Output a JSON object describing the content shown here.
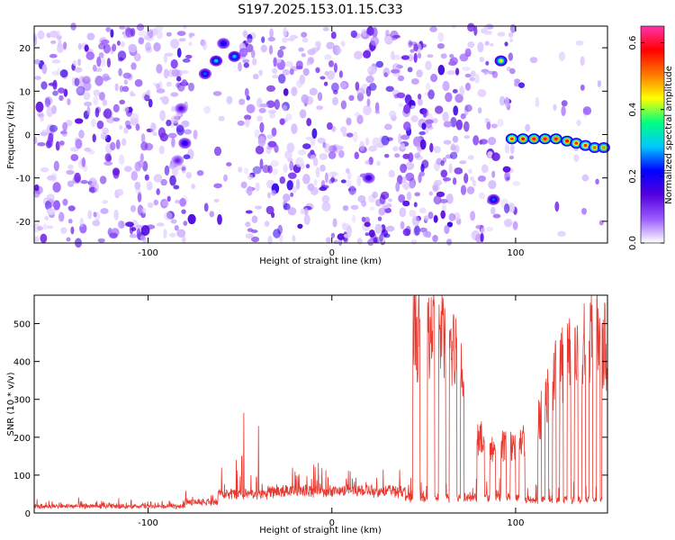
{
  "chart_data": [
    {
      "type": "heatmap",
      "title": "S197.2025.153.01.15.C33",
      "xlabel": "Height of straight line (km)",
      "ylabel": "Frequency (Hz)",
      "xlim": [
        -162,
        150
      ],
      "ylim": [
        -25,
        25
      ],
      "x_ticks": [
        -100,
        0,
        100
      ],
      "y_ticks": [
        -20,
        -10,
        0,
        10,
        20
      ],
      "colorbar": {
        "label": "Normalized spectral amplitude",
        "range": [
          0,
          0.65
        ],
        "ticks": [
          0,
          0.2,
          0.4,
          0.6
        ],
        "colors": [
          "#ffffff",
          "#9a5cff",
          "#5500dd",
          "#0000ff",
          "#00c8ff",
          "#00ff80",
          "#ffff00",
          "#ff7700",
          "#ff0000",
          "#ff33aa"
        ]
      },
      "blank_bands": [
        {
          "x0": -76,
          "x1": -50
        },
        {
          "x0": 89,
          "x1": 95
        },
        {
          "x0": 100,
          "x1": 150
        }
      ],
      "hotspots": [
        {
          "x": -69,
          "y": 14,
          "v": 0.25
        },
        {
          "x": -63,
          "y": 17,
          "v": 0.3
        },
        {
          "x": -59,
          "y": 21,
          "v": 0.22
        },
        {
          "x": -53,
          "y": 18,
          "v": 0.3
        },
        {
          "x": -82,
          "y": 6,
          "v": 0.15
        },
        {
          "x": -80,
          "y": -2,
          "v": 0.2
        },
        {
          "x": -84,
          "y": -6,
          "v": 0.12
        },
        {
          "x": 20,
          "y": -10,
          "v": 0.18
        },
        {
          "x": 92,
          "y": 17,
          "v": 0.45
        },
        {
          "x": 88,
          "y": -15,
          "v": 0.25
        },
        {
          "x": 98,
          "y": -1,
          "v": 0.55
        },
        {
          "x": 104,
          "y": -1,
          "v": 0.58
        },
        {
          "x": 110,
          "y": -1,
          "v": 0.6
        },
        {
          "x": 116,
          "y": -1,
          "v": 0.6
        },
        {
          "x": 122,
          "y": -1,
          "v": 0.6
        },
        {
          "x": 128,
          "y": -1.5,
          "v": 0.58
        },
        {
          "x": 133,
          "y": -2,
          "v": 0.55
        },
        {
          "x": 138,
          "y": -2.5,
          "v": 0.55
        },
        {
          "x": 143,
          "y": -3,
          "v": 0.52
        },
        {
          "x": 148,
          "y": -3,
          "v": 0.5
        }
      ]
    },
    {
      "type": "line",
      "xlabel": "Height of straight line (km)",
      "ylabel": "SNR (10 * v/v)",
      "xlim": [
        -162,
        150
      ],
      "ylim": [
        0,
        575
      ],
      "x_ticks": [
        -100,
        0,
        100
      ],
      "y_ticks": [
        0,
        100,
        200,
        300,
        400,
        500
      ],
      "color": "#e8382f",
      "segments": [
        {
          "x0": -162,
          "x1": -80,
          "base": 15
        },
        {
          "x0": -80,
          "x1": -62,
          "base": 28
        },
        {
          "x0": -62,
          "x1": -35,
          "base": 50
        },
        {
          "x0": -35,
          "x1": 40,
          "base": 60
        },
        {
          "x0": 40,
          "x1": 44,
          "base": 40
        },
        {
          "x0": 44,
          "x1": 48,
          "base": 520
        },
        {
          "x0": 48,
          "x1": 52,
          "base": 40
        },
        {
          "x0": 52,
          "x1": 56,
          "base": 520
        },
        {
          "x0": 56,
          "x1": 58,
          "base": 40
        },
        {
          "x0": 58,
          "x1": 62,
          "base": 510
        },
        {
          "x0": 62,
          "x1": 64,
          "base": 40
        },
        {
          "x0": 64,
          "x1": 68,
          "base": 470
        },
        {
          "x0": 68,
          "x1": 70,
          "base": 40
        },
        {
          "x0": 70,
          "x1": 72,
          "base": 420
        },
        {
          "x0": 72,
          "x1": 79,
          "base": 40
        },
        {
          "x0": 79,
          "x1": 83,
          "base": 210
        },
        {
          "x0": 83,
          "x1": 86,
          "base": 40
        },
        {
          "x0": 86,
          "x1": 89,
          "base": 170
        },
        {
          "x0": 89,
          "x1": 92,
          "base": 40
        },
        {
          "x0": 92,
          "x1": 95,
          "base": 200
        },
        {
          "x0": 95,
          "x1": 97,
          "base": 40
        },
        {
          "x0": 97,
          "x1": 100,
          "base": 190
        },
        {
          "x0": 100,
          "x1": 102,
          "base": 40
        },
        {
          "x0": 102,
          "x1": 105,
          "base": 210
        },
        {
          "x0": 105,
          "x1": 112,
          "base": 35
        },
        {
          "x0": 112,
          "x1": 114,
          "base": 290
        },
        {
          "x0": 114,
          "x1": 116,
          "base": 35
        },
        {
          "x0": 116,
          "x1": 118,
          "base": 360
        },
        {
          "x0": 118,
          "x1": 120,
          "base": 35
        },
        {
          "x0": 120,
          "x1": 122,
          "base": 400
        },
        {
          "x0": 122,
          "x1": 124,
          "base": 35
        },
        {
          "x0": 124,
          "x1": 126,
          "base": 440
        },
        {
          "x0": 126,
          "x1": 128,
          "base": 35
        },
        {
          "x0": 128,
          "x1": 130,
          "base": 470
        },
        {
          "x0": 130,
          "x1": 132,
          "base": 35
        },
        {
          "x0": 132,
          "x1": 134,
          "base": 490
        },
        {
          "x0": 134,
          "x1": 136,
          "base": 35
        },
        {
          "x0": 136,
          "x1": 138,
          "base": 500
        },
        {
          "x0": 138,
          "x1": 140,
          "base": 35
        },
        {
          "x0": 140,
          "x1": 142,
          "base": 500
        },
        {
          "x0": 142,
          "x1": 144,
          "base": 35
        },
        {
          "x0": 144,
          "x1": 146,
          "base": 510
        },
        {
          "x0": 146,
          "x1": 147,
          "base": 35
        },
        {
          "x0": 147,
          "x1": 150,
          "base": 490
        }
      ],
      "spikes": [
        {
          "x": -60,
          "y": 120
        },
        {
          "x": -52,
          "y": 140
        },
        {
          "x": -49,
          "y": 150
        },
        {
          "x": -48,
          "y": 265
        },
        {
          "x": -44,
          "y": 100
        },
        {
          "x": -40,
          "y": 230
        },
        {
          "x": -20,
          "y": 110
        },
        {
          "x": 10,
          "y": 110
        },
        {
          "x": 28,
          "y": 115
        },
        {
          "x": 45,
          "y": 575
        },
        {
          "x": 54,
          "y": 570
        },
        {
          "x": 81,
          "y": 235
        }
      ]
    }
  ]
}
